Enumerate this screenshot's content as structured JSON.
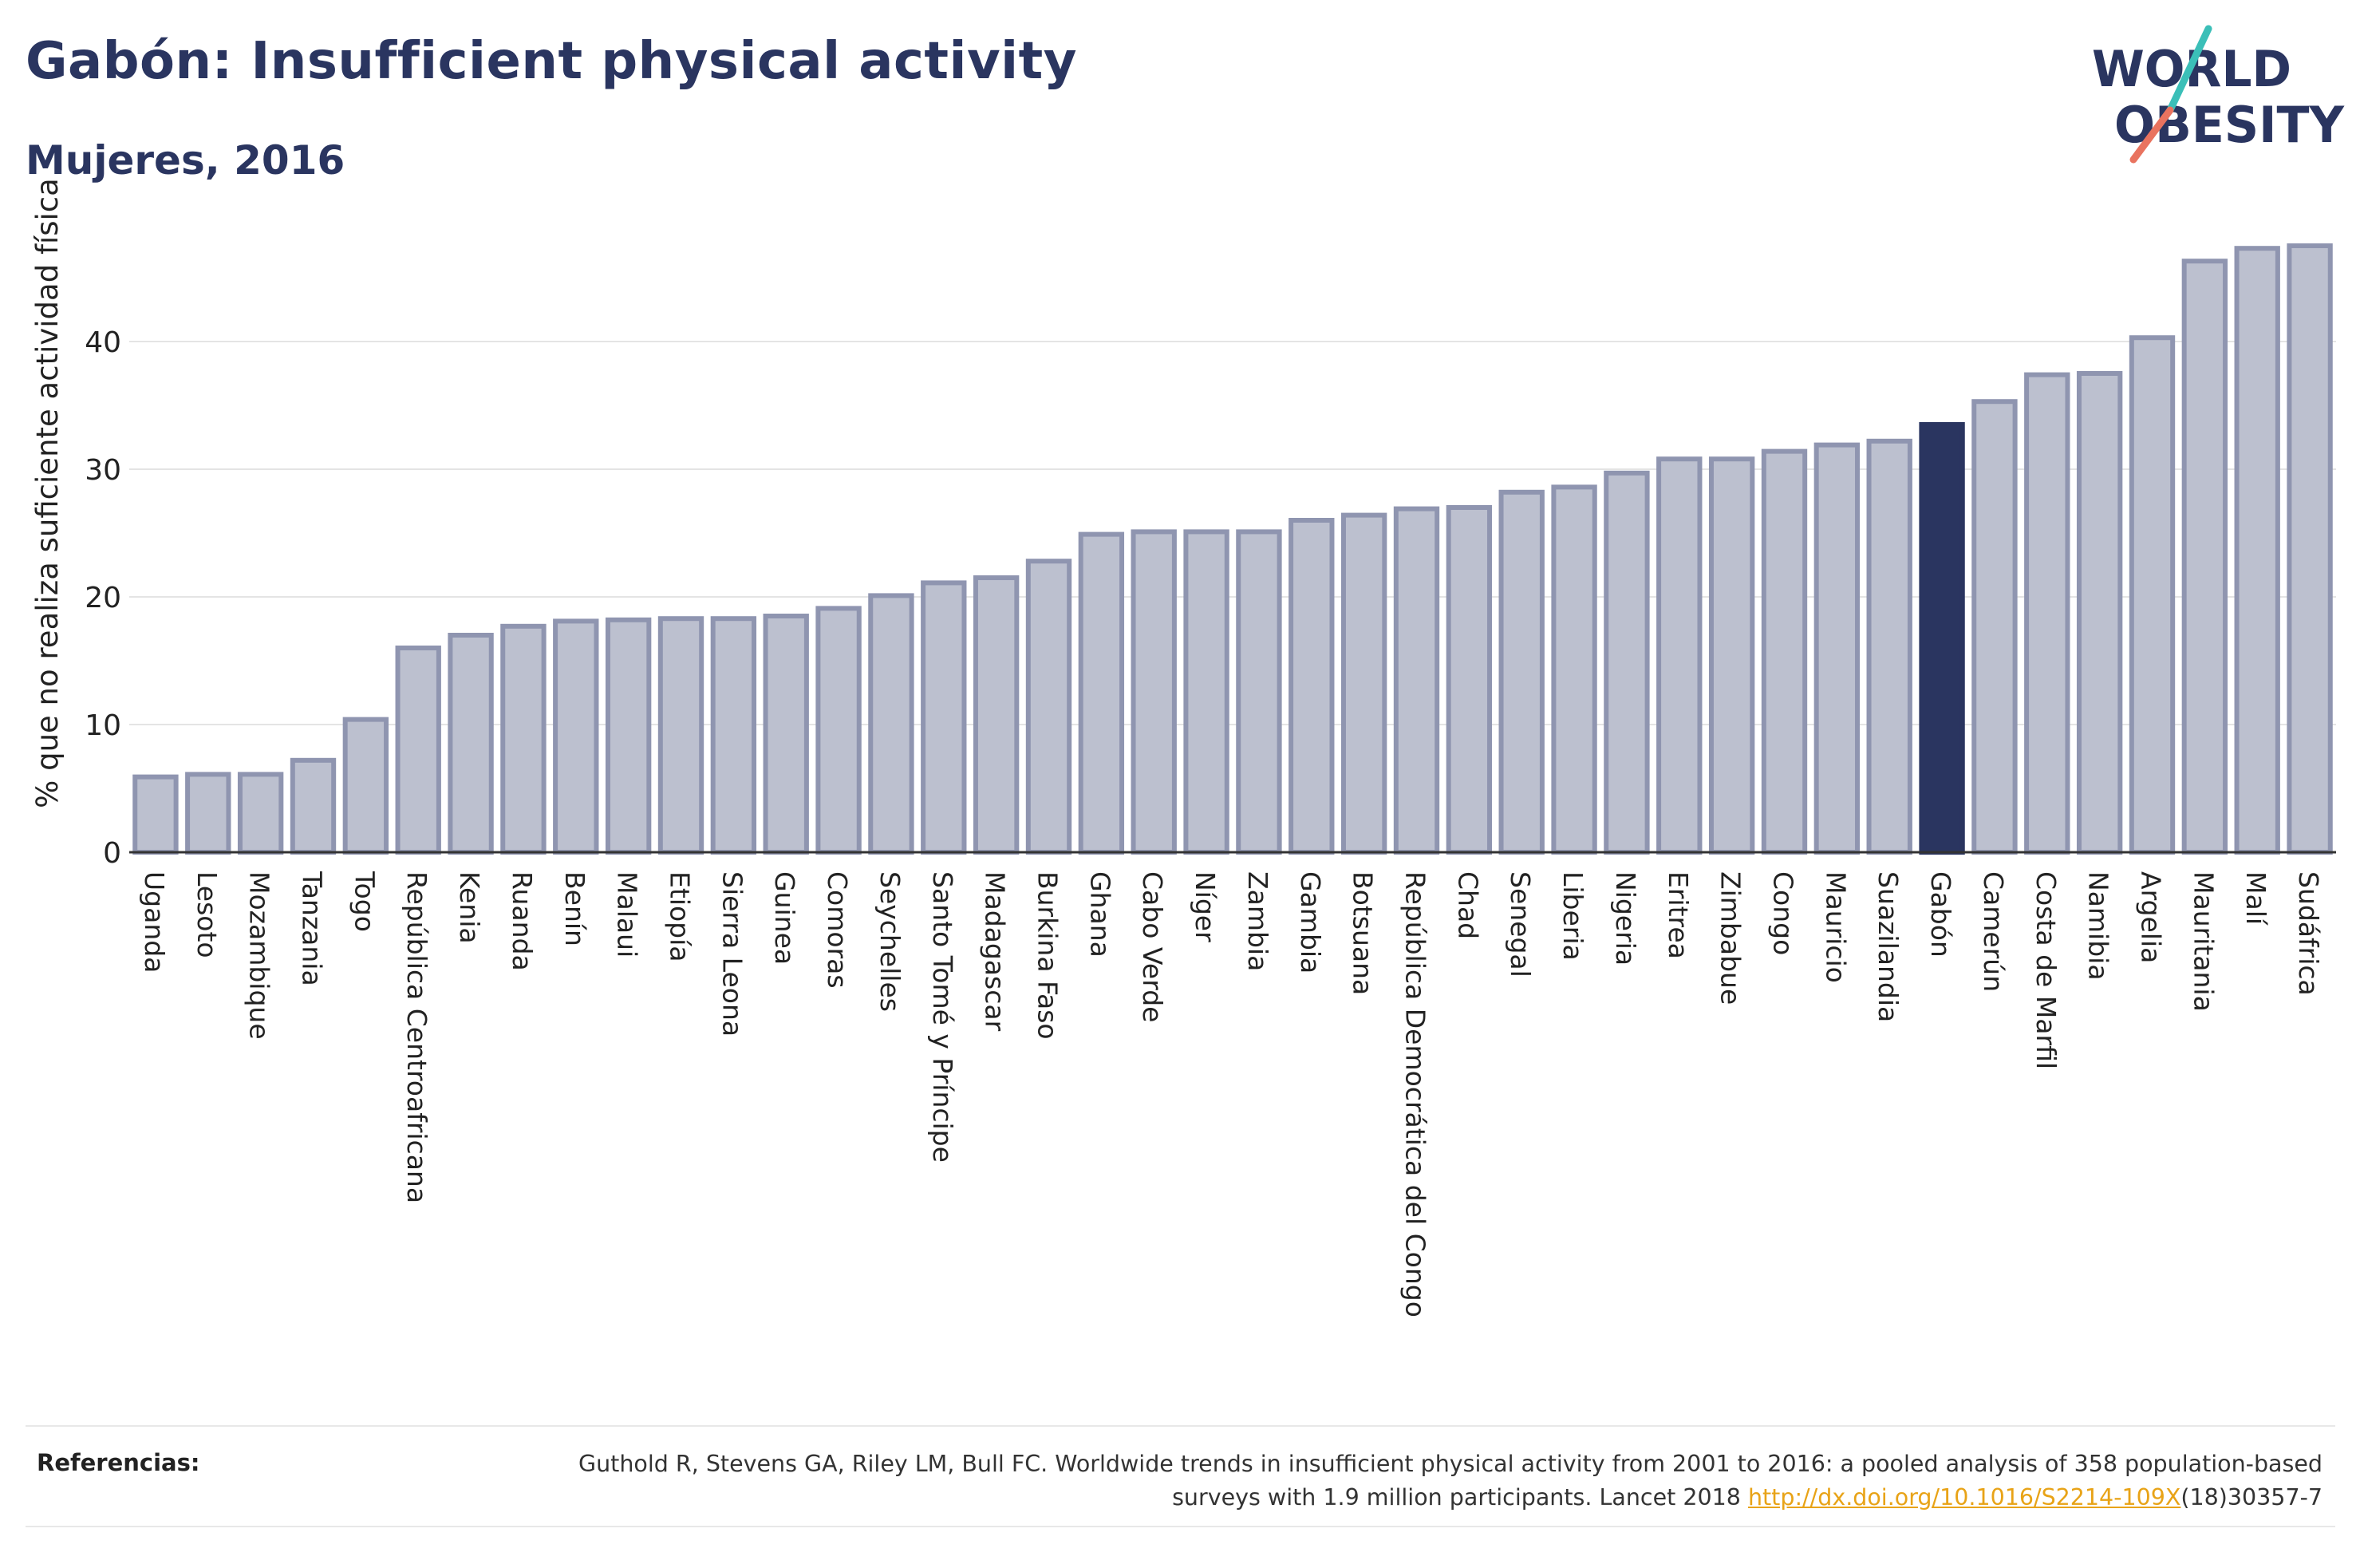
{
  "header": {
    "title": "Gabón: Insufficient physical activity",
    "subtitle": "Mujeres, 2016"
  },
  "logo": {
    "line1": "WORLD",
    "line2": "OBESITY",
    "colors": {
      "text": "#2a3560",
      "slash_teal": "#3bbfb8",
      "slash_coral": "#e9735f"
    }
  },
  "chart_data": {
    "type": "bar",
    "ylabel": "% que no realiza suficiente actividad física",
    "xlabel": "",
    "ylim": [
      0,
      50
    ],
    "yticks": [
      0,
      10,
      20,
      30,
      40
    ],
    "grid": true,
    "highlight": "Gabón",
    "colors": {
      "bar": "#bcc0cf",
      "bar_edge": "#8f95b0",
      "highlight": "#2a3560",
      "grid": "#e4e4e4",
      "axis": "#333333"
    },
    "categories": [
      "Uganda",
      "Lesoto",
      "Mozambique",
      "Tanzania",
      "Togo",
      "República Centroafricana",
      "Kenia",
      "Ruanda",
      "Benín",
      "Malaui",
      "Etiopía",
      "Sierra Leona",
      "Guinea",
      "Comoras",
      "Seychelles",
      "Santo Tomé y Príncipe",
      "Madagascar",
      "Burkina Faso",
      "Ghana",
      "Cabo Verde",
      "Níger",
      "Zambia",
      "Gambia",
      "Botsuana",
      "República Democrática del Congo",
      "Chad",
      "Senegal",
      "Liberia",
      "Nigeria",
      "Eritrea",
      "Zimbabue",
      "Congo",
      "Mauricio",
      "Suazilandia",
      "Gabón",
      "Camerún",
      "Costa de Marfil",
      "Namibia",
      "Argelia",
      "Mauritania",
      "Malí",
      "Sudáfrica"
    ],
    "values": [
      5.9,
      6.1,
      6.1,
      7.2,
      10.4,
      16.0,
      17.0,
      17.7,
      18.1,
      18.2,
      18.3,
      18.3,
      18.5,
      19.1,
      20.1,
      21.1,
      21.5,
      22.8,
      24.9,
      25.1,
      25.1,
      25.1,
      26.0,
      26.4,
      26.9,
      27.0,
      28.2,
      28.6,
      29.7,
      30.8,
      30.8,
      31.4,
      31.9,
      32.2,
      33.5,
      35.3,
      37.4,
      37.5,
      40.3,
      46.3,
      47.3,
      47.5
    ]
  },
  "references": {
    "label": "Referencias:",
    "text_before": "Guthold R, Stevens GA, Riley LM, Bull FC. Worldwide trends in insufficient physical activity from 2001 to 2016: a pooled analysis of 358 population-based surveys with 1.9 million participants. Lancet 2018 ",
    "link": "http://dx.doi.org/10.1016/S2214-109X",
    "text_after": "(18)30357-7"
  }
}
